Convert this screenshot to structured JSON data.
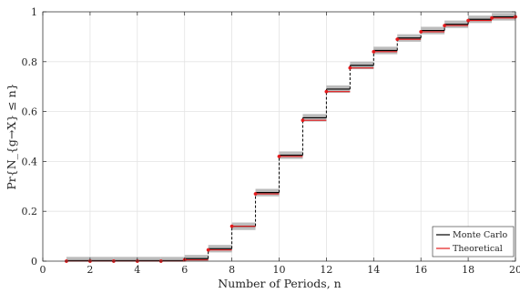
{
  "chart_data": {
    "type": "line",
    "xlabel": "Number of Periods, n",
    "ylabel": "Pr{N_{g→X} ≤ n}",
    "xlim": [
      0,
      20
    ],
    "ylim": [
      0,
      1
    ],
    "x_ticks": [
      0,
      2,
      4,
      6,
      8,
      10,
      12,
      14,
      16,
      18,
      20
    ],
    "y_ticks": [
      0,
      0.2,
      0.4,
      0.6,
      0.8,
      1
    ],
    "grid": true,
    "legend_position": "bottom-right",
    "x": [
      1,
      2,
      3,
      4,
      5,
      6,
      7,
      8,
      9,
      10,
      11,
      12,
      13,
      14,
      15,
      16,
      17,
      18,
      19,
      20
    ],
    "series": [
      {
        "name": "Monte Carlo",
        "color": "#000000",
        "step": true,
        "values": [
          0.002,
          0.002,
          0.002,
          0.002,
          0.002,
          0.01,
          0.05,
          0.14,
          0.275,
          0.425,
          0.575,
          0.69,
          0.785,
          0.845,
          0.895,
          0.925,
          0.95,
          0.97,
          0.98,
          0.985
        ],
        "band_width": 0.03,
        "band_color": "#a6a6a6"
      },
      {
        "name": "Theoretical",
        "color": "#e41a1c",
        "step": true,
        "markers": true,
        "values": [
          0.0,
          0.0,
          0.0,
          0.0,
          0.0,
          0.005,
          0.045,
          0.14,
          0.27,
          0.42,
          0.565,
          0.68,
          0.775,
          0.84,
          0.89,
          0.92,
          0.945,
          0.965,
          0.975,
          0.98
        ]
      }
    ]
  }
}
